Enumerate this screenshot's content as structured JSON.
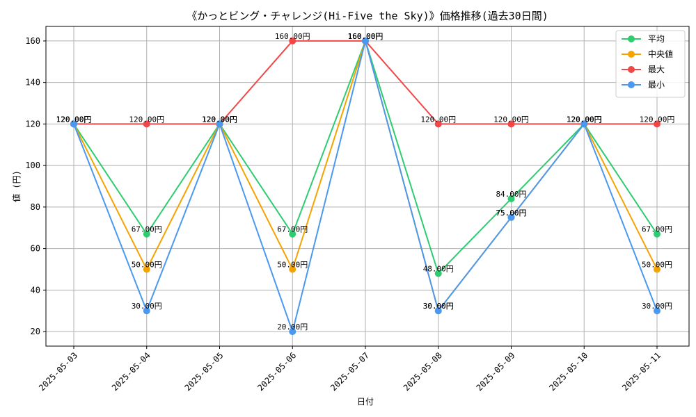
{
  "chart_data": {
    "type": "line",
    "title": "《かっとビング・チャレンジ(Hi-Five the Sky)》価格推移(過去30日間)",
    "xlabel": "日付",
    "ylabel": "値 (円)",
    "categories": [
      "2025-05-03",
      "2025-05-04",
      "2025-05-05",
      "2025-05-06",
      "2025-05-07",
      "2025-05-08",
      "2025-05-09",
      "2025-05-10",
      "2025-05-11"
    ],
    "ylim": [
      13,
      167
    ],
    "yticks": [
      20,
      40,
      60,
      80,
      100,
      120,
      140,
      160
    ],
    "grid": true,
    "legend_position": "top-right",
    "series": [
      {
        "name": "平均",
        "color": "#2ecc71",
        "values": [
          120,
          67,
          120,
          67,
          160,
          48,
          84,
          120,
          67
        ],
        "labels": [
          "120.00円",
          "67.00円",
          "120.00円",
          "67.00円",
          "160.00円",
          "48.00円",
          "84.00円",
          "120.00円",
          "67.00円"
        ]
      },
      {
        "name": "中央値",
        "color": "#f5a300",
        "values": [
          120,
          50,
          120,
          50,
          160,
          30,
          75,
          120,
          50
        ],
        "labels": [
          "120.00円",
          "50.00円",
          "120.00円",
          "50.00円",
          "160.00円",
          "30.00円",
          "75.00円",
          "120.00円",
          "50.00円"
        ]
      },
      {
        "name": "最大",
        "color": "#f04848",
        "values": [
          120,
          120,
          120,
          160,
          160,
          120,
          120,
          120,
          120
        ],
        "labels": [
          "120.00円",
          "120.00円",
          "120.00円",
          "160.00円",
          "160.00円",
          "120.00円",
          "120.00円",
          "120.00円",
          "120.00円"
        ]
      },
      {
        "name": "最小",
        "color": "#4a98f0",
        "values": [
          120,
          30,
          120,
          20,
          160,
          30,
          75,
          120,
          30
        ],
        "labels": [
          "120.00円",
          "30.00円",
          "120.00円",
          "20.00円",
          "160.00円",
          "30.00円",
          "75.00円",
          "120.00円",
          "30.00円"
        ]
      }
    ]
  }
}
